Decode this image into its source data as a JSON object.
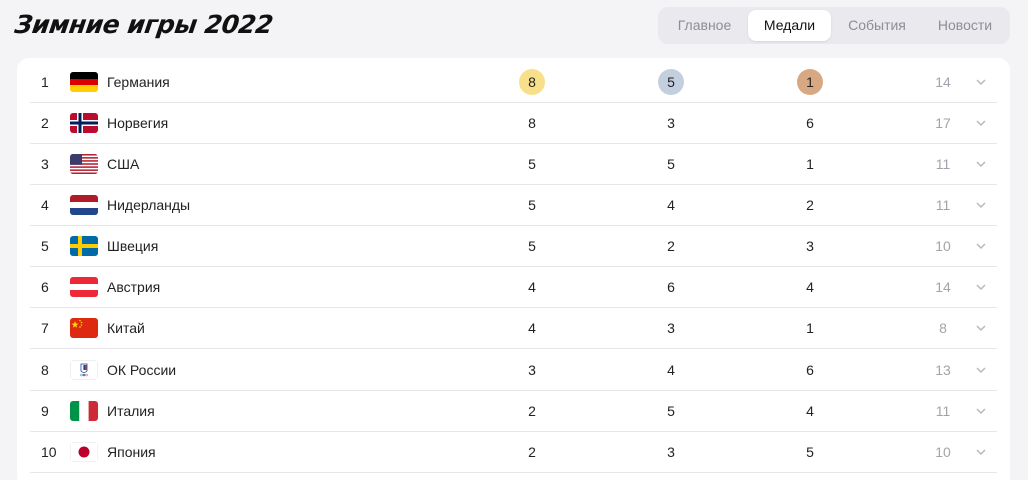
{
  "app": {
    "title": "Зимние игры 2022"
  },
  "nav": {
    "tabs": [
      {
        "label": "Главное"
      },
      {
        "label": "Медали",
        "active": true
      },
      {
        "label": "События"
      },
      {
        "label": "Новости"
      }
    ]
  },
  "medal_colors": {
    "gold": "#f8e08a",
    "silver": "#c3cfdf",
    "bronze": "#d8a882"
  },
  "table": {
    "rows": [
      {
        "rank": "1",
        "country": "Германия",
        "flag": "germany-flag-icon",
        "gold": "8",
        "silver": "5",
        "bronze": "1",
        "total": "14"
      },
      {
        "rank": "2",
        "country": "Норвегия",
        "flag": "norway-flag-icon",
        "gold": "8",
        "silver": "3",
        "bronze": "6",
        "total": "17"
      },
      {
        "rank": "3",
        "country": "США",
        "flag": "usa-flag-icon",
        "gold": "5",
        "silver": "5",
        "bronze": "1",
        "total": "11"
      },
      {
        "rank": "4",
        "country": "Нидерланды",
        "flag": "netherlands-flag-icon",
        "gold": "5",
        "silver": "4",
        "bronze": "2",
        "total": "11"
      },
      {
        "rank": "5",
        "country": "Швеция",
        "flag": "sweden-flag-icon",
        "gold": "5",
        "silver": "2",
        "bronze": "3",
        "total": "10"
      },
      {
        "rank": "6",
        "country": "Австрия",
        "flag": "austria-flag-icon",
        "gold": "4",
        "silver": "6",
        "bronze": "4",
        "total": "14"
      },
      {
        "rank": "7",
        "country": "Китай",
        "flag": "china-flag-icon",
        "gold": "4",
        "silver": "3",
        "bronze": "1",
        "total": "8"
      },
      {
        "rank": "8",
        "country": "ОК России",
        "flag": "roc-emblem-icon",
        "gold": "3",
        "silver": "4",
        "bronze": "6",
        "total": "13"
      },
      {
        "rank": "9",
        "country": "Италия",
        "flag": "italy-flag-icon",
        "gold": "2",
        "silver": "5",
        "bronze": "4",
        "total": "11"
      },
      {
        "rank": "10",
        "country": "Япония",
        "flag": "japan-flag-icon",
        "gold": "2",
        "silver": "3",
        "bronze": "5",
        "total": "10"
      }
    ]
  }
}
